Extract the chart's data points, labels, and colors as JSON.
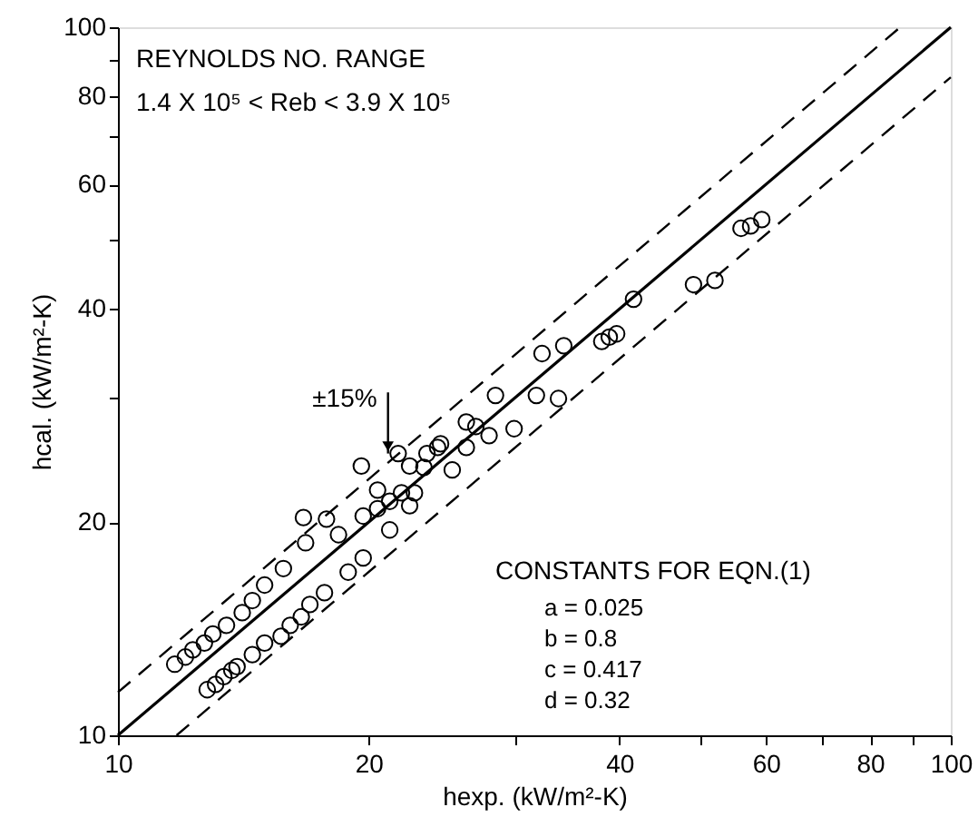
{
  "chart_data": {
    "type": "scatter",
    "log": "xy",
    "xlim": [
      10,
      100
    ],
    "ylim": [
      10,
      100
    ],
    "xticks": [
      10,
      20,
      {
        "value": 30,
        "label": null
      },
      40,
      {
        "value": 50,
        "label": null
      },
      60,
      {
        "value": 70,
        "label": null
      },
      80,
      {
        "value": 90,
        "label": null
      },
      100
    ],
    "yticks": [
      10,
      20,
      {
        "value": 30,
        "label": null
      },
      40,
      {
        "value": 50,
        "label": null
      },
      60,
      {
        "value": 70,
        "label": null
      },
      80,
      {
        "value": 90,
        "label": null
      },
      100
    ],
    "xlabel": "hexp. (kW/m²-K)",
    "ylabel": "hcal. (kW/m²-K)",
    "grid": false,
    "annotations": [
      "REYNOLDS NO. RANGE",
      "1.4 X 10⁵ < Reb < 3.9 X 10⁵",
      {
        "text": "±15%",
        "x": 21.1,
        "y": 25.0
      },
      "CONSTANTS FOR EQN.(1)",
      "a = 0.025",
      "b = 0.8",
      "c = 0.417",
      "d = 0.32"
    ],
    "series": [
      {
        "type": "scatter",
        "color": "#000000",
        "marker": "circle",
        "x": [
          11.7,
          12.05,
          12.3,
          12.7,
          13.0,
          13.5,
          14.1,
          14.5,
          15.0,
          15.8,
          16.7,
          16.8,
          17.8,
          18.4,
          19.6,
          19.7,
          20.5,
          20.5,
          21.2,
          21.2,
          21.7,
          21.9,
          22.4,
          22.4,
          22.7,
          23.3,
          23.5,
          24.2,
          24.4,
          25.2,
          26.2,
          26.2,
          26.9,
          27.9,
          28.4,
          12.8,
          13.1,
          13.4,
          13.7,
          13.9,
          14.5,
          15.0,
          15.7,
          16.1,
          16.6,
          17.0,
          17.7,
          18.9,
          19.7,
          29.9,
          31.8,
          32.3,
          33.8,
          34.3,
          38.1,
          38.9,
          39.7,
          41.6,
          49.1,
          52.1,
          56.0,
          57.5,
          59.3
        ],
        "values": [
          12.6,
          12.9,
          13.2,
          13.5,
          13.9,
          14.3,
          14.9,
          15.5,
          16.3,
          17.2,
          20.3,
          18.7,
          20.2,
          19.2,
          24.0,
          20.4,
          22.2,
          20.9,
          21.4,
          19.5,
          25.0,
          22.0,
          24.0,
          21.1,
          22.0,
          23.9,
          25.0,
          25.5,
          25.8,
          23.7,
          27.7,
          25.5,
          27.3,
          26.5,
          30.2,
          11.6,
          11.8,
          12.1,
          12.35,
          12.5,
          13.0,
          13.5,
          13.8,
          14.3,
          14.7,
          15.3,
          15.9,
          17.0,
          17.8,
          27.1,
          30.2,
          34.6,
          29.9,
          35.5,
          36.0,
          36.5,
          36.9,
          41.3,
          43.3,
          43.9,
          52.0,
          52.4,
          53.5
        ]
      },
      {
        "type": "line",
        "color": "#000000",
        "line_style": "solid",
        "marker": "none",
        "x": [
          10,
          100
        ],
        "values": [
          10,
          100
        ]
      },
      {
        "type": "line",
        "color": "#000000",
        "line_style": "dashed",
        "marker": "none",
        "x": [
          10,
          86.96
        ],
        "values": [
          11.5,
          100
        ]
      },
      {
        "type": "line",
        "color": "#000000",
        "line_style": "dashed",
        "marker": "none",
        "x": [
          11.76,
          100
        ],
        "values": [
          10,
          85
        ]
      }
    ]
  }
}
